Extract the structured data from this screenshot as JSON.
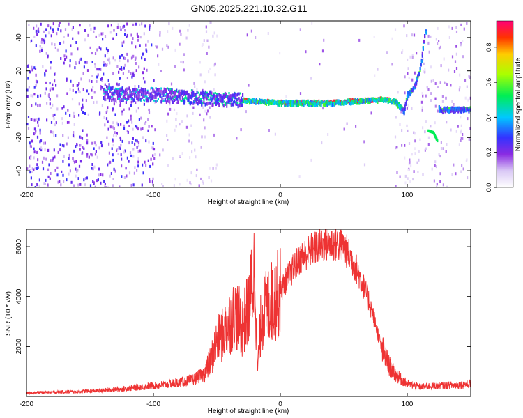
{
  "title": "GN05.2025.221.10.32.G11",
  "chart_data": [
    {
      "type": "heatmap",
      "xlabel": "Height of straight line (km)",
      "ylabel": "Frequency (Hz)",
      "xlim": [
        -200,
        150
      ],
      "ylim": [
        -50,
        50
      ],
      "x_ticks": [
        "-200",
        "-100",
        "0",
        "100"
      ],
      "y_ticks": [
        "-40",
        "-20",
        "0",
        "20",
        "40"
      ],
      "colorbar": {
        "label": "Normalized spectral amplitude",
        "range": [
          0,
          0.95
        ],
        "ticks": [
          "0.0",
          "0.2",
          "0.4",
          "0.6",
          "0.8"
        ]
      },
      "ridge": [
        {
          "x": -140,
          "y": 7
        },
        {
          "x": -120,
          "y": 6
        },
        {
          "x": -100,
          "y": 6
        },
        {
          "x": -80,
          "y": 5
        },
        {
          "x": -60,
          "y": 4
        },
        {
          "x": -40,
          "y": 3
        },
        {
          "x": -20,
          "y": 2
        },
        {
          "x": 0,
          "y": 1
        },
        {
          "x": 20,
          "y": 1
        },
        {
          "x": 40,
          "y": 1
        },
        {
          "x": 60,
          "y": 2
        },
        {
          "x": 80,
          "y": 3
        },
        {
          "x": 90,
          "y": 2
        },
        {
          "x": 97,
          "y": -4
        },
        {
          "x": 100,
          "y": 6
        },
        {
          "x": 105,
          "y": 10
        },
        {
          "x": 110,
          "y": 22
        },
        {
          "x": 114,
          "y": 45
        },
        {
          "x": 125,
          "y": -3
        },
        {
          "x": 150,
          "y": -3
        }
      ],
      "side_branch": [
        {
          "x": 116,
          "y": -16
        },
        {
          "x": 120,
          "y": -17
        },
        {
          "x": 123,
          "y": -22
        }
      ]
    },
    {
      "type": "line",
      "xlabel": "Height of straight line (km)",
      "ylabel": "SNR (10 * v/v)",
      "xlim": [
        -200,
        150
      ],
      "ylim": [
        0,
        6700
      ],
      "x_ticks": [
        "-200",
        "-100",
        "0",
        "100"
      ],
      "y_ticks": [
        "2000",
        "4000",
        "6000"
      ],
      "color": "#ee3333",
      "series": [
        {
          "x": [
            -200,
            -180,
            -160,
            -140,
            -120,
            -100,
            -90,
            -80,
            -70,
            -60,
            -55,
            -50,
            -45,
            -40,
            -35,
            -30,
            -25,
            -20,
            -18,
            -15,
            -10,
            -5,
            0,
            5,
            10,
            15,
            20,
            25,
            30,
            35,
            40,
            45,
            50,
            55,
            60,
            65,
            70,
            75,
            80,
            85,
            90,
            95,
            100,
            110,
            120,
            130,
            140,
            150
          ],
          "values": [
            150,
            170,
            190,
            240,
            320,
            430,
            480,
            560,
            650,
            900,
            1400,
            2200,
            2500,
            3000,
            3300,
            2800,
            3500,
            5200,
            1000,
            3200,
            3600,
            3900,
            4200,
            4700,
            5100,
            5500,
            5700,
            5900,
            6000,
            6100,
            6150,
            6100,
            6000,
            5600,
            5100,
            4500,
            3800,
            2900,
            1900,
            1300,
            900,
            700,
            500,
            380,
            420,
            440,
            460,
            500
          ]
        }
      ]
    }
  ]
}
